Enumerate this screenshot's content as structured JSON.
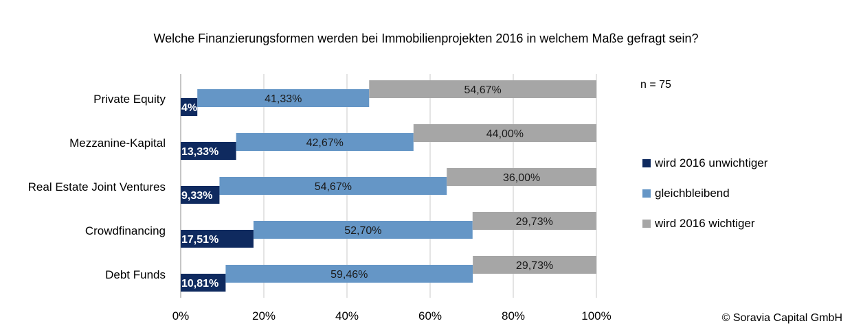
{
  "chart_data": {
    "type": "bar",
    "orientation": "horizontal",
    "stacked": true,
    "title": "Welche Finanzierungsformen werden bei Immobilienprojekten 2016 in welchem Maße gefragt sein?",
    "categories": [
      "Private Equity",
      "Mezzanine-Kapital",
      "Real Estate Joint Ventures",
      "Crowdfinancing",
      "Debt Funds"
    ],
    "series": [
      {
        "name": "wird 2016 unwichtiger",
        "color": "#0f2a5f",
        "values": [
          4.0,
          13.33,
          9.33,
          17.51,
          10.81
        ],
        "labels": [
          "4%",
          "13,33%",
          "9,33%",
          "17,51%",
          "10,81%"
        ]
      },
      {
        "name": "gleichbleibend",
        "color": "#6596c6",
        "values": [
          41.33,
          42.67,
          54.67,
          52.7,
          59.46
        ],
        "labels": [
          "41,33%",
          "42,67%",
          "54,67%",
          "52,70%",
          "59,46%"
        ]
      },
      {
        "name": "wird 2016 wichtiger",
        "color": "#a6a6a6",
        "values": [
          54.67,
          44.0,
          36.0,
          29.73,
          29.73
        ],
        "labels": [
          "54,67%",
          "44,00%",
          "36,00%",
          "29,73%",
          "29,73%"
        ]
      }
    ],
    "xlim": [
      0,
      100
    ],
    "xticks": [
      "0%",
      "20%",
      "40%",
      "60%",
      "80%",
      "100%"
    ],
    "grid": true,
    "legend": "right",
    "note": "n = 75",
    "copyright": "© Soravia Capital GmbH"
  }
}
